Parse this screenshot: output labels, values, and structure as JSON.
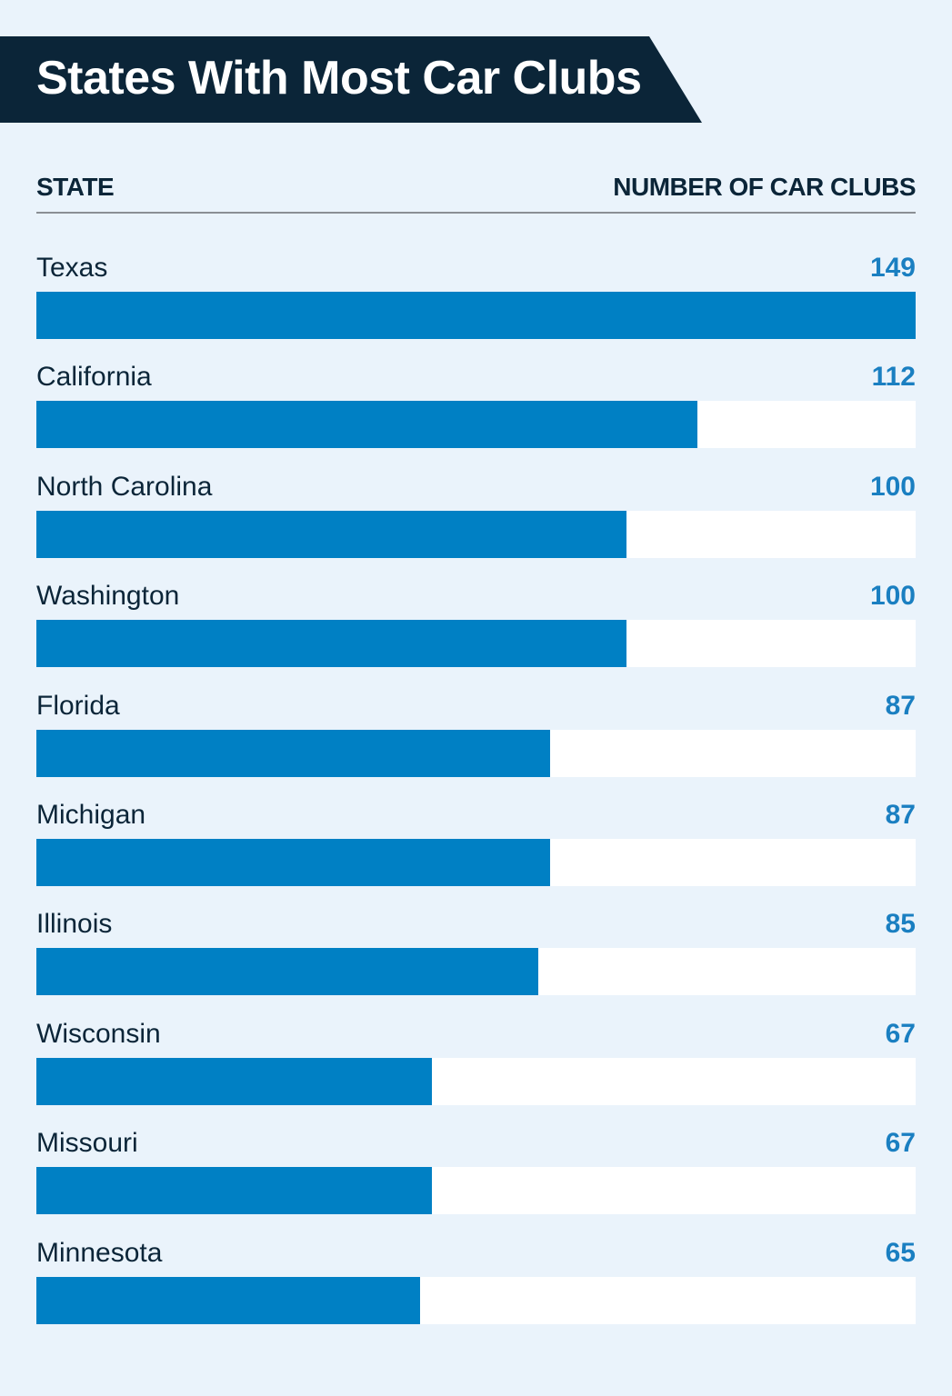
{
  "title": "States With Most Car Clubs",
  "headers": {
    "state": "STATE",
    "count": "NUMBER OF CAR CLUBS"
  },
  "colors": {
    "bar": "#0080c4",
    "value_text": "#1a7fc1",
    "banner": "#0b2538",
    "background": "#eaf3fb",
    "track": "#ffffff"
  },
  "rows": [
    {
      "state": "Texas",
      "value": "149"
    },
    {
      "state": "California",
      "value": "112"
    },
    {
      "state": "North Carolina",
      "value": "100"
    },
    {
      "state": "Washington",
      "value": "100"
    },
    {
      "state": "Florida",
      "value": "87"
    },
    {
      "state": "Michigan",
      "value": "87"
    },
    {
      "state": "Illinois",
      "value": "85"
    },
    {
      "state": "Wisconsin",
      "value": "67"
    },
    {
      "state": "Missouri",
      "value": "67"
    },
    {
      "state": "Minnesota",
      "value": "65"
    }
  ],
  "chart_data": {
    "type": "bar",
    "orientation": "horizontal",
    "title": "States With Most Car Clubs",
    "xlabel": "NUMBER OF CAR CLUBS",
    "ylabel": "STATE",
    "categories": [
      "Texas",
      "California",
      "North Carolina",
      "Washington",
      "Florida",
      "Michigan",
      "Illinois",
      "Wisconsin",
      "Missouri",
      "Minnesota"
    ],
    "values": [
      149,
      112,
      100,
      100,
      87,
      87,
      85,
      67,
      67,
      65
    ],
    "xlim": [
      0,
      149
    ],
    "grid": false,
    "legend": null
  }
}
